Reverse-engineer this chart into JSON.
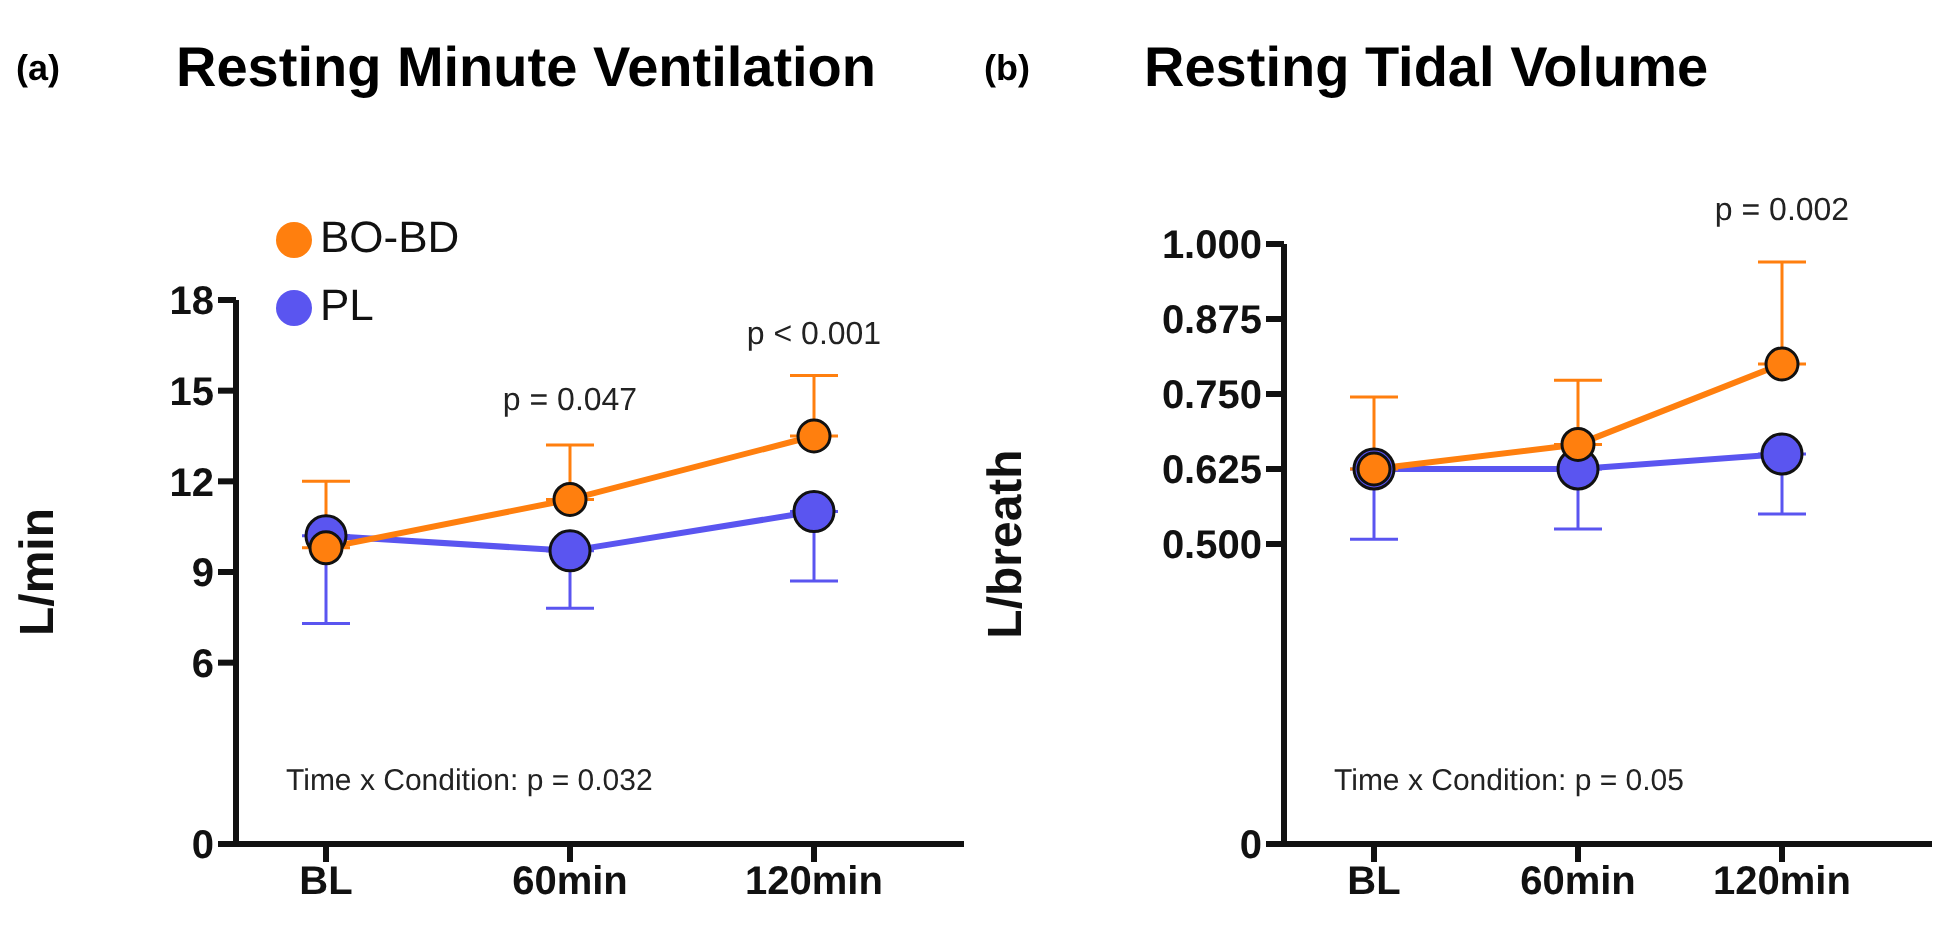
{
  "chart_data": [
    {
      "type": "line",
      "title": "Resting Minute Ventilation",
      "ylabel": "L/min",
      "categories": [
        "BL",
        "60min",
        "120min"
      ],
      "series": [
        {
          "name": "BO-BD",
          "color": "#ff7f0e",
          "values": [
            9.8,
            11.4,
            13.5
          ],
          "errors": [
            [
              9.8,
              12.0
            ],
            [
              11.4,
              13.2
            ],
            [
              13.5,
              15.5
            ]
          ]
        },
        {
          "name": "PL",
          "color": "#5a55f0",
          "values": [
            10.2,
            9.7,
            11.0
          ],
          "errors": [
            [
              7.3,
              10.2
            ],
            [
              7.8,
              9.7
            ],
            [
              8.7,
              11.0
            ]
          ]
        }
      ],
      "ylim": [
        0,
        18
      ],
      "yticks": [
        0,
        6,
        9,
        12,
        15,
        18
      ],
      "legend": "top left",
      "marker": "circle",
      "line_style": "solid",
      "annotations": [
        "(a)",
        "Time x Condition: p = 0.032",
        "p = 0.047",
        "p < 0.001"
      ]
    },
    {
      "type": "line",
      "title": "Resting Tidal Volume",
      "ylabel": "L/breath",
      "categories": [
        "BL",
        "60min",
        "120min"
      ],
      "series": [
        {
          "color": "#ff7f0e",
          "values": [
            0.625,
            0.666,
            0.8
          ],
          "errors": [
            [
              0.625,
              0.745
            ],
            [
              0.666,
              0.773
            ],
            [
              0.8,
              0.97
            ]
          ]
        },
        {
          "color": "#5a55f0",
          "values": [
            0.625,
            0.625,
            0.65
          ],
          "errors": [
            [
              0.508,
              0.625
            ],
            [
              0.525,
              0.625
            ],
            [
              0.55,
              0.65
            ]
          ]
        }
      ],
      "ylim": [
        0,
        1
      ],
      "yticks": [
        0,
        {
          "value": 0.5,
          "label": "0.500"
        },
        0.625,
        {
          "value": 0.75,
          "label": "0.750"
        },
        0.875,
        {
          "value": 1,
          "label": "1.000"
        }
      ],
      "marker": "circle",
      "line_style": "solid",
      "annotations": [
        "(b)",
        "Time x Condition: p = 0.05",
        "p = 0.002"
      ]
    }
  ]
}
